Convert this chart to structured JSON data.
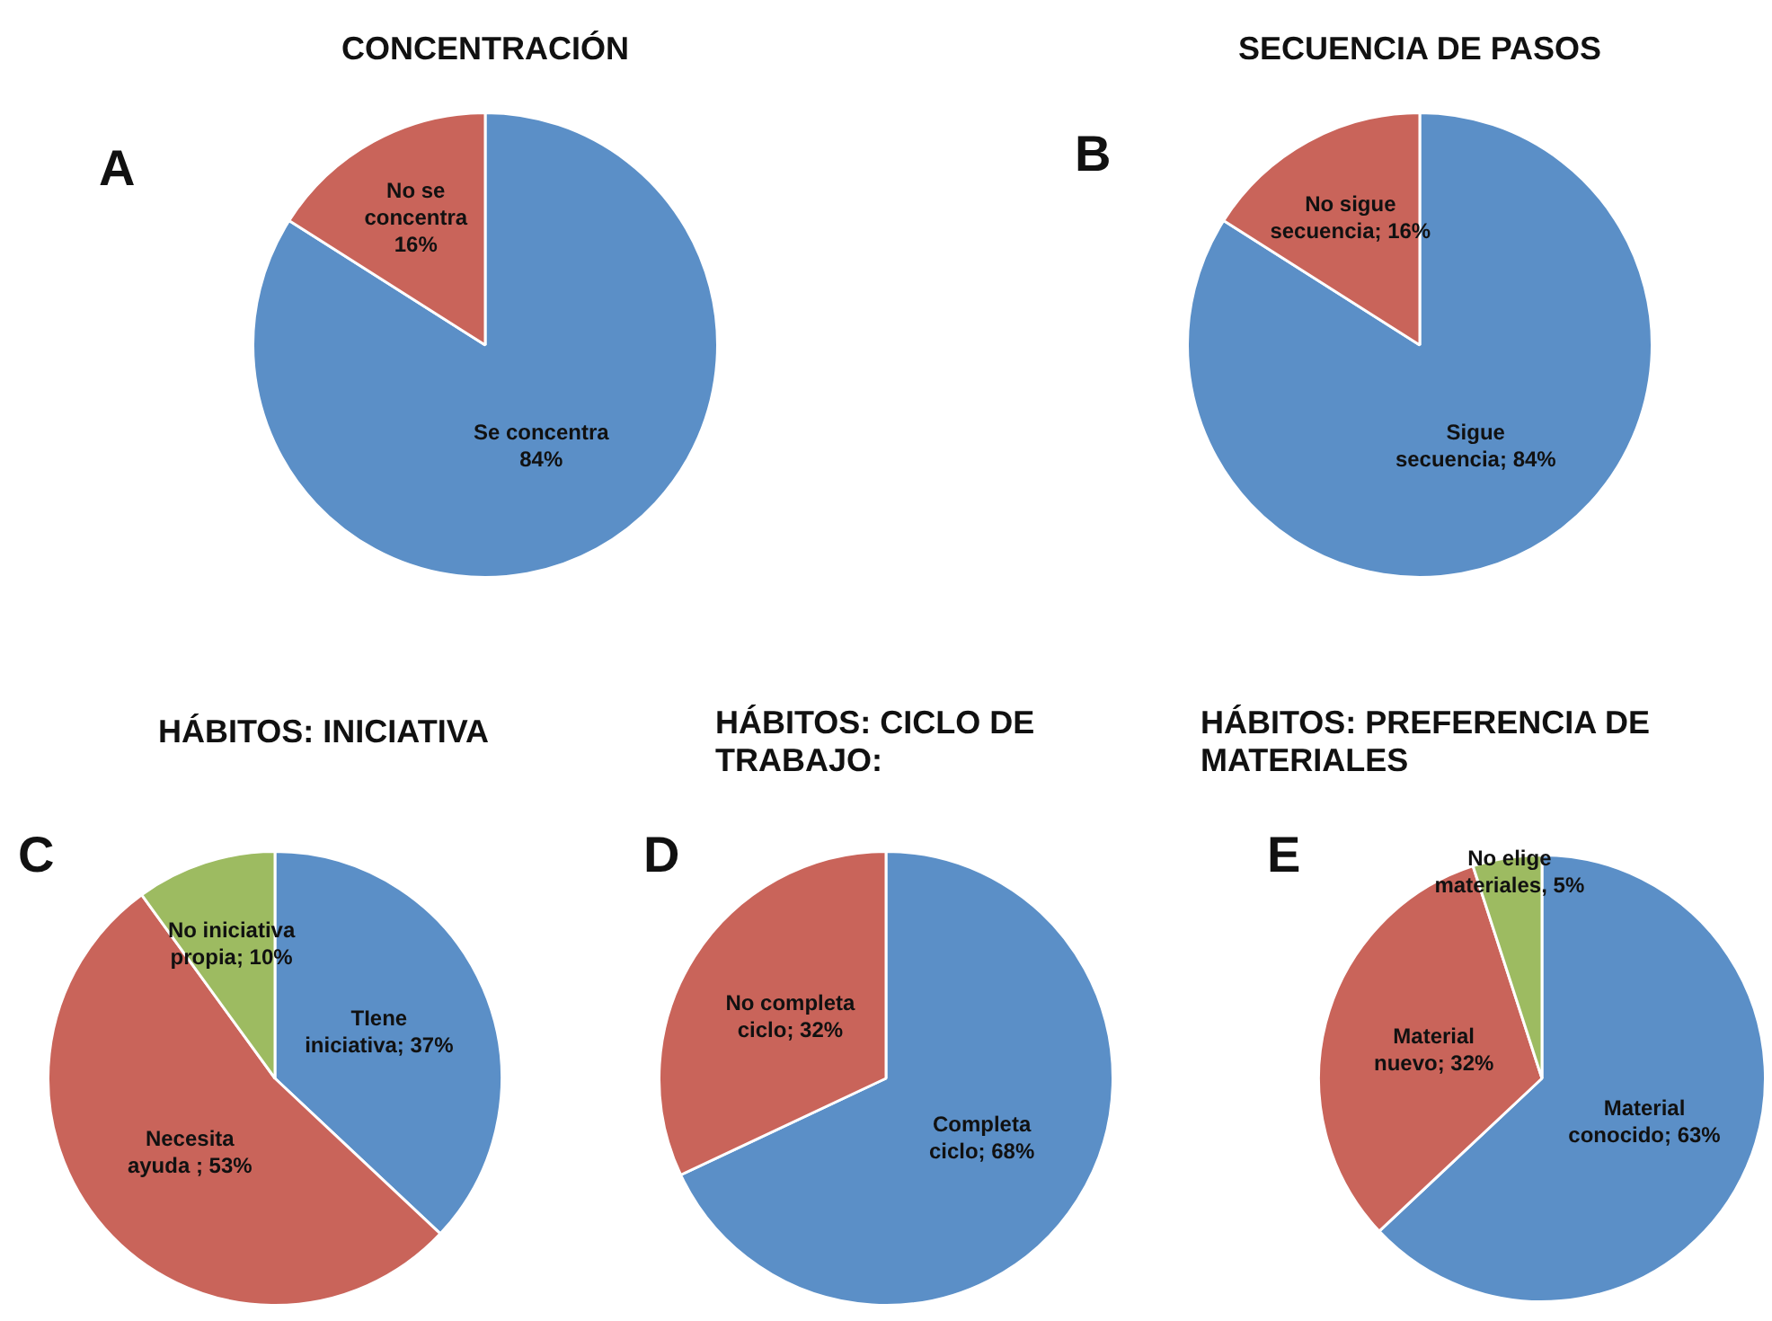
{
  "chart_data": [
    {
      "type": "pie",
      "title": "CONCENTRACIÓN",
      "annotations": [
        "A"
      ],
      "categories": [
        "Se concentra",
        "No se concentra"
      ],
      "values": [
        84,
        16
      ],
      "value_labels": [
        "84%",
        "16%"
      ],
      "colors": [
        "#5b8fc7",
        "#c9645a"
      ]
    },
    {
      "type": "pie",
      "title": "SECUENCIA DE PASOS",
      "annotations": [
        "B"
      ],
      "categories": [
        "Sigue secuencia",
        "No sigue secuencia"
      ],
      "values": [
        84,
        16
      ],
      "value_labels": [
        "84%",
        "16%"
      ],
      "colors": [
        "#5b8fc7",
        "#c9645a"
      ]
    },
    {
      "type": "pie",
      "title": "HÁBITOS: INICIATIVA",
      "annotations": [
        "C"
      ],
      "categories": [
        "TIene iniciativa",
        "Necesita ayuda",
        "No iniciativa propia"
      ],
      "values": [
        37,
        53,
        10
      ],
      "value_labels": [
        "37%",
        "53%",
        "10%"
      ],
      "colors": [
        "#5b8fc7",
        "#c9645a",
        "#9dbb61"
      ]
    },
    {
      "type": "pie",
      "title": "HÁBITOS: CICLO DE TRABAJO:",
      "annotations": [
        "D"
      ],
      "categories": [
        "Completa ciclo",
        "No completa ciclo"
      ],
      "values": [
        68,
        32
      ],
      "value_labels": [
        "68%",
        "32%"
      ],
      "colors": [
        "#5b8fc7",
        "#c9645a"
      ]
    },
    {
      "type": "pie",
      "title": "HÁBITOS: PREFERENCIA DE MATERIALES",
      "annotations": [
        "E"
      ],
      "categories": [
        "Material conocido",
        "Material nuevo",
        "No elige materiales"
      ],
      "values": [
        63,
        32,
        5
      ],
      "value_labels": [
        "63%",
        "32%",
        "5%"
      ],
      "colors": [
        "#5b8fc7",
        "#c9645a",
        "#9dbb61"
      ]
    }
  ]
}
